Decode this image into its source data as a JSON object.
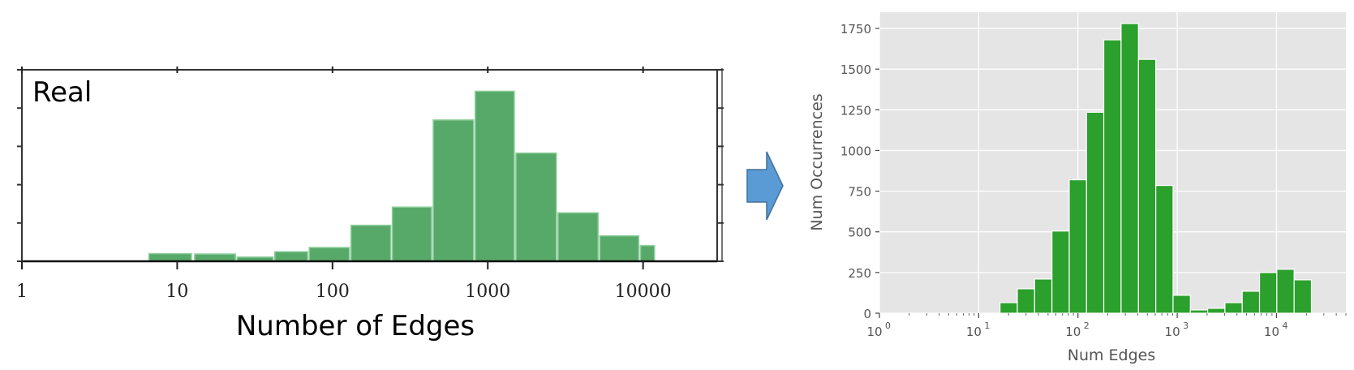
{
  "chart_data": [
    {
      "type": "bar",
      "panel": "left",
      "annotation": "Real",
      "xlabel": "Number of Edges",
      "ylabel": "",
      "xscale": "log",
      "xlim": [
        1,
        30000
      ],
      "ylim": [
        0,
        1000
      ],
      "x_tick_values": [
        1,
        10,
        100,
        1000,
        10000
      ],
      "x_tick_labels": [
        "1",
        "10",
        "100",
        "1000",
        "10000"
      ],
      "y_ticks": [
        0,
        200,
        400,
        600,
        800,
        1000
      ],
      "bar_color": "#57a96a",
      "bins": [
        {
          "x0": 6.5,
          "x1": 12.5,
          "value": 40
        },
        {
          "x0": 12.8,
          "x1": 24,
          "value": 38
        },
        {
          "x0": 24,
          "x1": 42,
          "value": 22
        },
        {
          "x0": 42,
          "x1": 70,
          "value": 50
        },
        {
          "x0": 70,
          "x1": 130,
          "value": 72
        },
        {
          "x0": 130,
          "x1": 240,
          "value": 188
        },
        {
          "x0": 240,
          "x1": 440,
          "value": 283
        },
        {
          "x0": 440,
          "x1": 820,
          "value": 738
        },
        {
          "x0": 820,
          "x1": 1500,
          "value": 888
        },
        {
          "x0": 1500,
          "x1": 2800,
          "value": 565
        },
        {
          "x0": 2800,
          "x1": 5200,
          "value": 253
        },
        {
          "x0": 5200,
          "x1": 9500,
          "value": 133
        },
        {
          "x0": 9500,
          "x1": 12000,
          "value": 82
        }
      ]
    },
    {
      "type": "bar",
      "panel": "right",
      "xlabel": "Num Edges",
      "ylabel": "Num Occurrences",
      "xscale": "log",
      "xlim": [
        1,
        50000
      ],
      "ylim": [
        0,
        1850
      ],
      "x_tick_values": [
        1,
        10,
        100,
        1000,
        10000
      ],
      "x_tick_base": "10",
      "x_tick_exponents": [
        "0",
        "1",
        "2",
        "3",
        "4"
      ],
      "y_ticks": [
        0,
        250,
        500,
        750,
        1000,
        1250,
        1500,
        1750
      ],
      "y_tick_labels": [
        "0",
        "250",
        "500",
        "750",
        "1000",
        "1250",
        "1500",
        "1750"
      ],
      "bar_color": "#2ca02c",
      "background": "#e5e5e5",
      "grid": true,
      "bins": [
        {
          "x0": 16.4,
          "x1": 24.5,
          "value": 65
        },
        {
          "x0": 24.5,
          "x1": 36.6,
          "value": 150
        },
        {
          "x0": 36.6,
          "x1": 54.7,
          "value": 210
        },
        {
          "x0": 54.7,
          "x1": 81.7,
          "value": 505
        },
        {
          "x0": 81.7,
          "x1": 122,
          "value": 820
        },
        {
          "x0": 122,
          "x1": 182,
          "value": 1235
        },
        {
          "x0": 182,
          "x1": 272,
          "value": 1680
        },
        {
          "x0": 272,
          "x1": 407,
          "value": 1780
        },
        {
          "x0": 407,
          "x1": 608,
          "value": 1560
        },
        {
          "x0": 608,
          "x1": 908,
          "value": 785
        },
        {
          "x0": 908,
          "x1": 1356,
          "value": 110
        },
        {
          "x0": 1356,
          "x1": 2025,
          "value": 20
        },
        {
          "x0": 2025,
          "x1": 3024,
          "value": 30
        },
        {
          "x0": 3024,
          "x1": 4516,
          "value": 65
        },
        {
          "x0": 4516,
          "x1": 6745,
          "value": 135
        },
        {
          "x0": 6745,
          "x1": 10073,
          "value": 250
        },
        {
          "x0": 10073,
          "x1": 15043,
          "value": 270
        },
        {
          "x0": 15043,
          "x1": 22464,
          "value": 205
        }
      ]
    }
  ],
  "arrow": {
    "color": "#5b9bd5",
    "edge": "#41719c"
  }
}
